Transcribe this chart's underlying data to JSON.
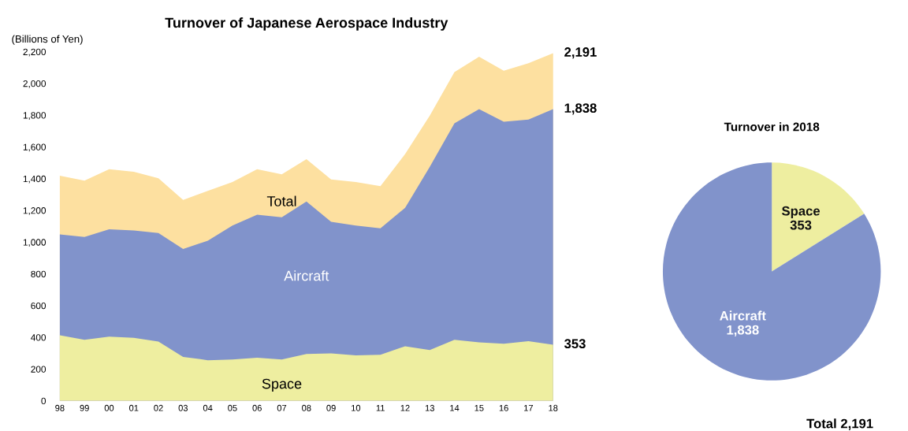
{
  "chart_data": [
    {
      "type": "area",
      "title": "Turnover of Japanese Aerospace Industry",
      "ylabel": "(Billions of Yen)",
      "categories": [
        "98",
        "99",
        "00",
        "01",
        "02",
        "03",
        "04",
        "05",
        "06",
        "07",
        "08",
        "09",
        "10",
        "11",
        "12",
        "13",
        "14",
        "15",
        "16",
        "17",
        "18"
      ],
      "series": [
        {
          "name": "Total",
          "color": "#fde0a0",
          "values": [
            1419,
            1387,
            1459,
            1443,
            1403,
            1266,
            1323,
            1379,
            1459,
            1427,
            1523,
            1395,
            1379,
            1353,
            1555,
            1797,
            2072,
            2169,
            2080,
            2128,
            2191
          ]
        },
        {
          "name": "Aircraft",
          "color": "#8193cb",
          "values": [
            1049,
            1033,
            1081,
            1073,
            1057,
            957,
            1009,
            1105,
            1173,
            1157,
            1256,
            1128,
            1104,
            1087,
            1216,
            1474,
            1749,
            1838,
            1759,
            1773,
            1838
          ]
        },
        {
          "name": "Space",
          "color": "#eeeea0",
          "values": [
            413,
            384,
            405,
            397,
            373,
            277,
            256,
            261,
            272,
            261,
            295,
            299,
            287,
            290,
            344,
            320,
            384,
            368,
            360,
            376,
            353
          ]
        }
      ],
      "ylim": [
        0,
        2200
      ],
      "yticks": [
        {
          "value": 0,
          "label": "0"
        },
        {
          "value": 200,
          "label": "200"
        },
        {
          "value": 400,
          "label": "400"
        },
        {
          "value": 600,
          "label": "600"
        },
        {
          "value": 800,
          "label": "800"
        },
        {
          "value": 1000,
          "label": "1,000"
        },
        {
          "value": 1200,
          "label": "1,200"
        },
        {
          "value": 1400,
          "label": "1,400"
        },
        {
          "value": 1600,
          "label": "1,600"
        },
        {
          "value": 1800,
          "label": "1,800"
        },
        {
          "value": 2000,
          "label": "2,000"
        },
        {
          "value": 2200,
          "label": "2,200"
        }
      ],
      "annotations": [
        {
          "text": "2,191",
          "x": "18",
          "y": 2191
        },
        {
          "text": "1,838",
          "x": "18",
          "y": 1838
        },
        {
          "text": "353",
          "x": "18",
          "y": 353
        }
      ],
      "grid": false,
      "legend": false
    },
    {
      "type": "pie",
      "title": "Turnover in 2018",
      "categories": [
        "Space",
        "Aircraft"
      ],
      "values": [
        353,
        1838
      ],
      "colors": [
        "#eeeea0",
        "#8193cb"
      ],
      "value_labels": [
        "353",
        "1,838"
      ],
      "annotations": [
        "Total 2,191"
      ],
      "legend": false
    }
  ]
}
